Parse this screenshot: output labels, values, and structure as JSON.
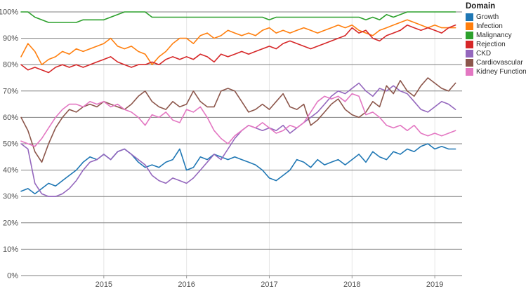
{
  "legend": {
    "title": "Domain"
  },
  "chart_data": {
    "type": "line",
    "title": "",
    "xlabel": "",
    "ylabel": "",
    "legend_title": "Domain",
    "legend_position": "top-right",
    "grid": true,
    "xlim": [
      2014.0,
      2019.33
    ],
    "ylim": [
      0,
      100
    ],
    "x_tick_values": [
      2015,
      2016,
      2017,
      2018,
      2019
    ],
    "x_tick_labels": [
      "2015",
      "2016",
      "2017",
      "2018",
      "2019"
    ],
    "y_tick_values": [
      0,
      10,
      20,
      30,
      40,
      50,
      60,
      70,
      80,
      90,
      100
    ],
    "y_tick_labels": [
      "0%",
      "10%",
      "20%",
      "30%",
      "40%",
      "50%",
      "60%",
      "70%",
      "80%",
      "90%",
      "100%"
    ],
    "x": [
      2014.0,
      2014.083,
      2014.167,
      2014.25,
      2014.333,
      2014.417,
      2014.5,
      2014.583,
      2014.667,
      2014.75,
      2014.833,
      2014.917,
      2015.0,
      2015.083,
      2015.167,
      2015.25,
      2015.333,
      2015.417,
      2015.5,
      2015.583,
      2015.667,
      2015.75,
      2015.833,
      2015.917,
      2016.0,
      2016.083,
      2016.167,
      2016.25,
      2016.333,
      2016.417,
      2016.5,
      2016.583,
      2016.667,
      2016.75,
      2016.833,
      2016.917,
      2017.0,
      2017.083,
      2017.167,
      2017.25,
      2017.333,
      2017.417,
      2017.5,
      2017.583,
      2017.667,
      2017.75,
      2017.833,
      2017.917,
      2018.0,
      2018.083,
      2018.167,
      2018.25,
      2018.333,
      2018.417,
      2018.5,
      2018.583,
      2018.667,
      2018.75,
      2018.833,
      2018.917,
      2019.0,
      2019.083,
      2019.167,
      2019.25
    ],
    "series": [
      {
        "name": "Growth",
        "color": "#1f77b4",
        "values": [
          32,
          33,
          31,
          33,
          35,
          34,
          36,
          38,
          40,
          43,
          45,
          44,
          46,
          44,
          47,
          48,
          46,
          43,
          41,
          42,
          41,
          43,
          44,
          48,
          40,
          41,
          45,
          44,
          46,
          45,
          44,
          45,
          44,
          43,
          42,
          40,
          37,
          36,
          38,
          40,
          44,
          43,
          41,
          44,
          42,
          43,
          44,
          42,
          44,
          46,
          43,
          47,
          45,
          44,
          47,
          46,
          48,
          47,
          49,
          50,
          48,
          49,
          48,
          48
        ]
      },
      {
        "name": "Infection",
        "color": "#ff7f0e",
        "values": [
          83,
          88,
          85,
          80,
          82,
          83,
          85,
          84,
          86,
          85,
          86,
          87,
          88,
          90,
          87,
          86,
          87,
          85,
          84,
          80,
          83,
          85,
          88,
          90,
          90,
          88,
          91,
          92,
          90,
          91,
          93,
          92,
          91,
          92,
          91,
          93,
          94,
          92,
          93,
          92,
          93,
          94,
          93,
          92,
          93,
          94,
          95,
          94,
          95,
          93,
          92,
          91,
          93,
          94,
          95,
          96,
          97,
          96,
          95,
          94,
          95,
          94,
          94,
          94
        ]
      },
      {
        "name": "Malignancy",
        "color": "#2ca02c",
        "values": [
          100,
          100,
          98,
          97,
          96,
          96,
          96,
          96,
          96,
          97,
          97,
          97,
          97,
          98,
          99,
          100,
          100,
          100,
          100,
          98,
          98,
          98,
          98,
          98,
          98,
          98,
          98,
          98,
          98,
          98,
          98,
          98,
          98,
          98,
          98,
          98,
          97,
          98,
          98,
          98,
          98,
          98,
          98,
          98,
          98,
          98,
          98,
          98,
          98,
          98,
          97,
          98,
          97,
          99,
          98,
          99,
          100,
          100,
          100,
          100,
          100,
          100,
          100,
          100
        ]
      },
      {
        "name": "Rejection",
        "color": "#d62728",
        "values": [
          80,
          78,
          79,
          78,
          77,
          79,
          80,
          79,
          80,
          79,
          80,
          81,
          82,
          83,
          81,
          80,
          79,
          80,
          80,
          81,
          80,
          82,
          83,
          82,
          83,
          82,
          84,
          83,
          81,
          84,
          83,
          84,
          85,
          84,
          85,
          86,
          87,
          86,
          88,
          89,
          88,
          87,
          86,
          87,
          88,
          89,
          90,
          91,
          94,
          92,
          93,
          90,
          89,
          91,
          92,
          93,
          95,
          94,
          93,
          94,
          93,
          92,
          94,
          95
        ]
      },
      {
        "name": "CKD",
        "color": "#9467bd",
        "values": [
          50,
          48,
          35,
          31,
          30,
          30,
          31,
          33,
          36,
          40,
          43,
          44,
          46,
          44,
          47,
          48,
          46,
          44,
          42,
          38,
          36,
          35,
          37,
          36,
          35,
          37,
          40,
          43,
          46,
          44,
          48,
          52,
          55,
          57,
          56,
          55,
          56,
          55,
          57,
          54,
          56,
          58,
          60,
          62,
          65,
          68,
          70,
          69,
          71,
          73,
          70,
          68,
          71,
          70,
          72,
          70,
          69,
          66,
          63,
          62,
          64,
          66,
          65,
          63
        ]
      },
      {
        "name": "Cardiovascular",
        "color": "#8c564b",
        "values": [
          60,
          55,
          47,
          43,
          50,
          56,
          60,
          63,
          62,
          64,
          65,
          64,
          66,
          65,
          64,
          63,
          65,
          68,
          70,
          66,
          64,
          63,
          66,
          64,
          65,
          70,
          66,
          64,
          64,
          70,
          71,
          70,
          66,
          62,
          63,
          65,
          63,
          66,
          69,
          64,
          63,
          65,
          57,
          59,
          62,
          65,
          67,
          63,
          61,
          60,
          62,
          66,
          64,
          72,
          69,
          74,
          70,
          68,
          72,
          75,
          73,
          71,
          70,
          73
        ]
      },
      {
        "name": "Kidney Function",
        "color": "#e377c2",
        "values": [
          51,
          50,
          49,
          52,
          56,
          60,
          63,
          65,
          65,
          64,
          66,
          65,
          66,
          64,
          65,
          63,
          62,
          60,
          57,
          61,
          60,
          62,
          59,
          58,
          63,
          62,
          64,
          60,
          55,
          52,
          50,
          53,
          55,
          57,
          56,
          58,
          56,
          54,
          55,
          57,
          56,
          58,
          62,
          66,
          68,
          67,
          68,
          66,
          69,
          68,
          61,
          62,
          60,
          57,
          56,
          57,
          55,
          57,
          54,
          53,
          54,
          53,
          54,
          55
        ]
      }
    ]
  }
}
